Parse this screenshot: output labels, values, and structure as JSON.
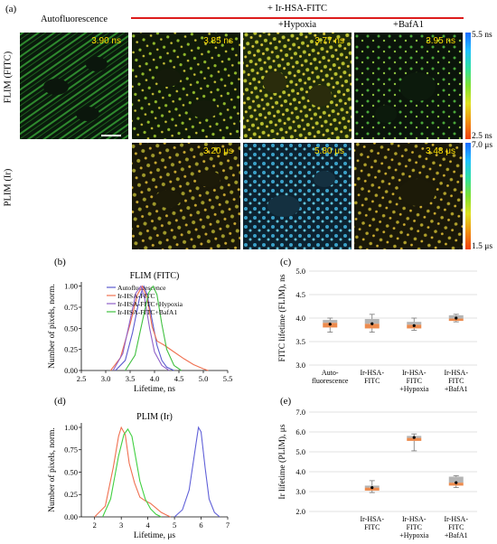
{
  "panel_letters": {
    "a": "(a)",
    "b": "(b)",
    "c": "(c)",
    "d": "(d)",
    "e": "(e)"
  },
  "header": {
    "col_autofluorescence": "Autofluorescence",
    "group_title": "+ Ir-HSA-FITC",
    "col_hypoxia": "+Hypoxia",
    "col_bafa1": "+BafA1",
    "row_flim": "FLIM (FITC)",
    "row_plim": "PLIM (Ir)"
  },
  "tiles": {
    "flim": [
      "3.90 ns",
      "3.85 ns",
      "3.77 ns",
      "3.95 ns"
    ],
    "plim": [
      "3.20 μs",
      "5.80 μs",
      "3.48 μs"
    ]
  },
  "colorbars": {
    "flim_max": "5.5 ns",
    "flim_min": "2.5 ns",
    "plim_max": "7.0 μs",
    "plim_min": "1.5 μs"
  },
  "colors": {
    "autofluorescence": "#5b5bcf",
    "ir_hsa_fitc": "#f07050",
    "hypoxia": "#9060c8",
    "bafa1": "#40c040",
    "bar_orange": "#ec8b4e",
    "bar_grey": "#b4b4b4",
    "header_red": "#dd1c1c"
  },
  "chart_data": [
    {
      "id": "b",
      "type": "line",
      "title": "FLIM (FITC)",
      "xlabel": "Lifetime, ns",
      "ylabel": "Number of pixels, norm.",
      "xlim": [
        2.5,
        5.5
      ],
      "ylim": [
        0,
        1.05
      ],
      "xticks": [
        "2.5",
        "3.0",
        "3.5",
        "4.0",
        "4.5",
        "5.0",
        "5.5"
      ],
      "yticks": [
        "0.00",
        "0.25",
        "0.50",
        "0.75",
        "1.00"
      ],
      "series": [
        {
          "name": "Autofluorescence",
          "color": "#5b5bcf",
          "x": [
            3.2,
            3.4,
            3.55,
            3.7,
            3.78,
            3.85,
            3.95,
            4.05,
            4.15,
            4.25,
            4.4
          ],
          "y": [
            0,
            0.12,
            0.45,
            0.88,
            1.0,
            0.9,
            0.6,
            0.3,
            0.12,
            0.04,
            0
          ]
        },
        {
          "name": "Ir-HSA-FITC",
          "color": "#f07050",
          "x": [
            3.1,
            3.3,
            3.5,
            3.65,
            3.75,
            3.85,
            3.95,
            4.05,
            4.2,
            4.4,
            4.6,
            4.8,
            5.0,
            5.1
          ],
          "y": [
            0,
            0.15,
            0.55,
            0.9,
            1.0,
            0.86,
            0.52,
            0.35,
            0.3,
            0.22,
            0.14,
            0.07,
            0.02,
            0
          ]
        },
        {
          "name": "Ir-HSA-FITC+Hypoxia",
          "color": "#9060c8",
          "x": [
            3.15,
            3.35,
            3.5,
            3.62,
            3.72,
            3.8,
            3.9,
            4.0,
            4.15,
            4.3
          ],
          "y": [
            0,
            0.2,
            0.6,
            0.92,
            1.0,
            0.85,
            0.5,
            0.22,
            0.06,
            0
          ]
        },
        {
          "name": "Ir-HSA-FITC+BafA1",
          "color": "#40c040",
          "x": [
            3.4,
            3.6,
            3.75,
            3.88,
            3.97,
            4.05,
            4.15,
            4.25,
            4.4,
            4.55
          ],
          "y": [
            0,
            0.18,
            0.58,
            0.92,
            1.0,
            0.9,
            0.55,
            0.25,
            0.06,
            0
          ]
        }
      ]
    },
    {
      "id": "c",
      "type": "box",
      "ylabel": "FITC lifetime (FLIM), ns",
      "ylim": [
        3.0,
        5.0
      ],
      "yticks": [
        "3.0",
        "3.5",
        "4.0",
        "4.5",
        "5.0"
      ],
      "categories": [
        "Auto-\nfluorescence",
        "Ir-HSA-\nFITC",
        "Ir-HSA-\nFITC\n+Hypoxia",
        "Ir-HSA-\nFITC\n+BafA1"
      ],
      "boxes": [
        {
          "q1": 3.8,
          "median": 3.9,
          "q3": 3.96,
          "whisker_low": 3.7,
          "whisker_high": 4.0,
          "mean": 3.87
        },
        {
          "q1": 3.78,
          "median": 3.88,
          "q3": 3.98,
          "whisker_low": 3.7,
          "whisker_high": 4.08,
          "mean": 3.88
        },
        {
          "q1": 3.78,
          "median": 3.86,
          "q3": 3.92,
          "whisker_low": 3.74,
          "whisker_high": 4.0,
          "mean": 3.84
        },
        {
          "q1": 3.94,
          "median": 3.99,
          "q3": 4.06,
          "whisker_low": 3.92,
          "whisker_high": 4.08,
          "mean": 4.0
        }
      ]
    },
    {
      "id": "d",
      "type": "line",
      "title": "PLIM (Ir)",
      "xlabel": "Lifetime, μs",
      "ylabel": "Number of pixels, norm.",
      "xlim": [
        1.5,
        7
      ],
      "ylim": [
        0,
        1.05
      ],
      "xticks": [
        "2",
        "3",
        "4",
        "5",
        "6",
        "7"
      ],
      "yticks": [
        "0.00",
        "0.25",
        "0.50",
        "0.75",
        "1.00"
      ],
      "series": [
        {
          "name": "Ir-HSA-FITC",
          "color": "#f07050",
          "x": [
            2.0,
            2.4,
            2.7,
            2.9,
            3.0,
            3.15,
            3.3,
            3.5,
            3.7,
            3.9,
            4.1,
            4.3,
            4.5,
            4.7,
            4.85
          ],
          "y": [
            0,
            0.12,
            0.55,
            0.9,
            1.0,
            0.92,
            0.6,
            0.38,
            0.22,
            0.18,
            0.15,
            0.1,
            0.05,
            0.02,
            0
          ]
        },
        {
          "name": "Ir-HSA-FITC+Hypoxia",
          "color": "#6060d8",
          "x": [
            5.0,
            5.3,
            5.55,
            5.75,
            5.9,
            6.0,
            6.15,
            6.3,
            6.5,
            6.7
          ],
          "y": [
            0,
            0.08,
            0.3,
            0.7,
            1.0,
            0.95,
            0.55,
            0.2,
            0.05,
            0
          ]
        },
        {
          "name": "Ir-HSA-FITC+BafA1",
          "color": "#40d040",
          "x": [
            2.3,
            2.6,
            2.9,
            3.1,
            3.25,
            3.4,
            3.55,
            3.7,
            3.9,
            4.1,
            4.3,
            4.5
          ],
          "y": [
            0,
            0.2,
            0.68,
            0.92,
            0.98,
            0.9,
            0.65,
            0.4,
            0.2,
            0.09,
            0.03,
            0
          ]
        }
      ]
    },
    {
      "id": "e",
      "type": "box",
      "ylabel": "Ir lifetime (PLIM), μs",
      "ylim": [
        2.0,
        7.0
      ],
      "yticks": [
        "2.0",
        "3.0",
        "4.0",
        "5.0",
        "6.0",
        "7.0"
      ],
      "categories": [
        "",
        "Ir-HSA-\nFITC",
        "Ir-HSA-\nFITC\n+Hypoxia",
        "Ir-HSA-\nFITC\n+BafA1"
      ],
      "boxes": [
        null,
        {
          "q1": 3.05,
          "median": 3.2,
          "q3": 3.3,
          "whisker_low": 2.95,
          "whisker_high": 3.55,
          "mean": 3.2
        },
        {
          "q1": 5.55,
          "median": 5.7,
          "q3": 5.8,
          "whisker_low": 5.05,
          "whisker_high": 5.9,
          "mean": 5.72
        },
        {
          "q1": 3.3,
          "median": 3.45,
          "q3": 3.75,
          "whisker_low": 3.2,
          "whisker_high": 3.8,
          "mean": 3.45
        }
      ]
    }
  ]
}
